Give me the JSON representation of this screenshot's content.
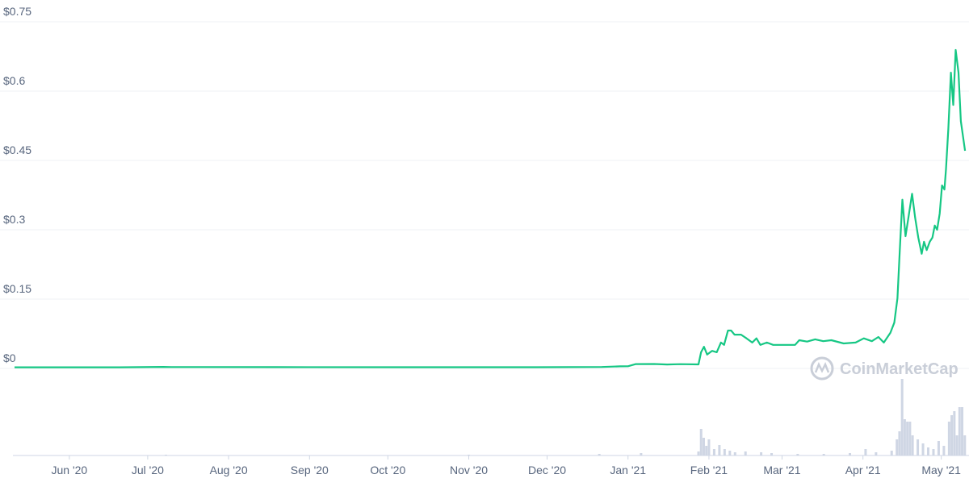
{
  "chart_data": {
    "type": "line",
    "watermark": "CoinMarketCap",
    "xlim": [
      0,
      365
    ],
    "xticks": [
      {
        "value": 21,
        "label": "Jun '20"
      },
      {
        "value": 51,
        "label": "Jul '20"
      },
      {
        "value": 82,
        "label": "Aug '20"
      },
      {
        "value": 113,
        "label": "Sep '20"
      },
      {
        "value": 143,
        "label": "Oct '20"
      },
      {
        "value": 174,
        "label": "Nov '20"
      },
      {
        "value": 204,
        "label": "Dec '20"
      },
      {
        "value": 235,
        "label": "Jan '21"
      },
      {
        "value": 266,
        "label": "Feb '21"
      },
      {
        "value": 294,
        "label": "Mar '21"
      },
      {
        "value": 325,
        "label": "Apr '21"
      },
      {
        "value": 355,
        "label": "May '21"
      }
    ],
    "ylim": [
      0,
      0.75
    ],
    "yticks": [
      {
        "value": 0,
        "label": "$0"
      },
      {
        "value": 0.15,
        "label": "$0.15"
      },
      {
        "value": 0.3,
        "label": "$0.3"
      },
      {
        "value": 0.45,
        "label": "$0.45"
      },
      {
        "value": 0.6,
        "label": "$0.6"
      },
      {
        "value": 0.75,
        "label": "$0.75"
      }
    ],
    "grid": true,
    "series": [
      {
        "color": "#16c784",
        "x": [
          0,
          20,
          40,
          57,
          60,
          100,
          150,
          200,
          225,
          232,
          235,
          238,
          245,
          250,
          255,
          262,
          263,
          264.1,
          265.3,
          267.2,
          269,
          270.6,
          271.8,
          273.3,
          274.5,
          275.8,
          278.3,
          280.4,
          282.6,
          284.2,
          285.7,
          288.2,
          290.6,
          294.4,
          299,
          300.6,
          303.6,
          306.7,
          309.8,
          312.9,
          317.6,
          322.2,
          325.3,
          328.4,
          330.9,
          333.0,
          335.5,
          337.0,
          338.2,
          339.1,
          340.1,
          341.3,
          342.5,
          343.8,
          345.0,
          346.2,
          347.5,
          348.4,
          349.4,
          350.6,
          351.6,
          352.5,
          353.4,
          354.4,
          355.3,
          356.2,
          356.8,
          357.7,
          358.7,
          359.6,
          360.5,
          361.6,
          362.5,
          364.1
        ],
        "values": [
          0.0025,
          0.0025,
          0.0025,
          0.0033,
          0.003,
          0.0028,
          0.0027,
          0.0027,
          0.0032,
          0.0045,
          0.0047,
          0.0095,
          0.0096,
          0.0085,
          0.0092,
          0.0087,
          0.035,
          0.047,
          0.03,
          0.038,
          0.035,
          0.056,
          0.051,
          0.082,
          0.082,
          0.073,
          0.073,
          0.065,
          0.056,
          0.065,
          0.051,
          0.056,
          0.051,
          0.051,
          0.051,
          0.061,
          0.058,
          0.063,
          0.059,
          0.061,
          0.054,
          0.056,
          0.065,
          0.059,
          0.068,
          0.056,
          0.077,
          0.099,
          0.152,
          0.256,
          0.365,
          0.286,
          0.33,
          0.378,
          0.326,
          0.283,
          0.248,
          0.274,
          0.256,
          0.274,
          0.283,
          0.309,
          0.3,
          0.335,
          0.396,
          0.387,
          0.431,
          0.518,
          0.64,
          0.57,
          0.689,
          0.64,
          0.535,
          0.471
        ]
      }
    ],
    "volume": {
      "color": "#cfd6e4",
      "x": [
        58,
        174,
        224,
        240,
        262,
        263,
        264,
        265,
        266,
        268,
        270,
        272,
        274,
        276,
        280,
        286,
        290,
        300,
        310,
        320,
        326,
        330,
        336,
        338,
        339,
        340,
        341,
        342,
        343,
        344,
        346,
        348,
        350,
        352,
        354,
        356,
        358,
        359,
        360,
        361,
        362,
        363,
        364
      ],
      "values": [
        1,
        1,
        2,
        3,
        5,
        33,
        22,
        12,
        20,
        8,
        13,
        8,
        6,
        4,
        5,
        4,
        3,
        2,
        2,
        3,
        8,
        4,
        6,
        20,
        30,
        95,
        45,
        42,
        42,
        25,
        20,
        15,
        10,
        8,
        18,
        12,
        42,
        50,
        55,
        25,
        60,
        60,
        25
      ]
    }
  }
}
